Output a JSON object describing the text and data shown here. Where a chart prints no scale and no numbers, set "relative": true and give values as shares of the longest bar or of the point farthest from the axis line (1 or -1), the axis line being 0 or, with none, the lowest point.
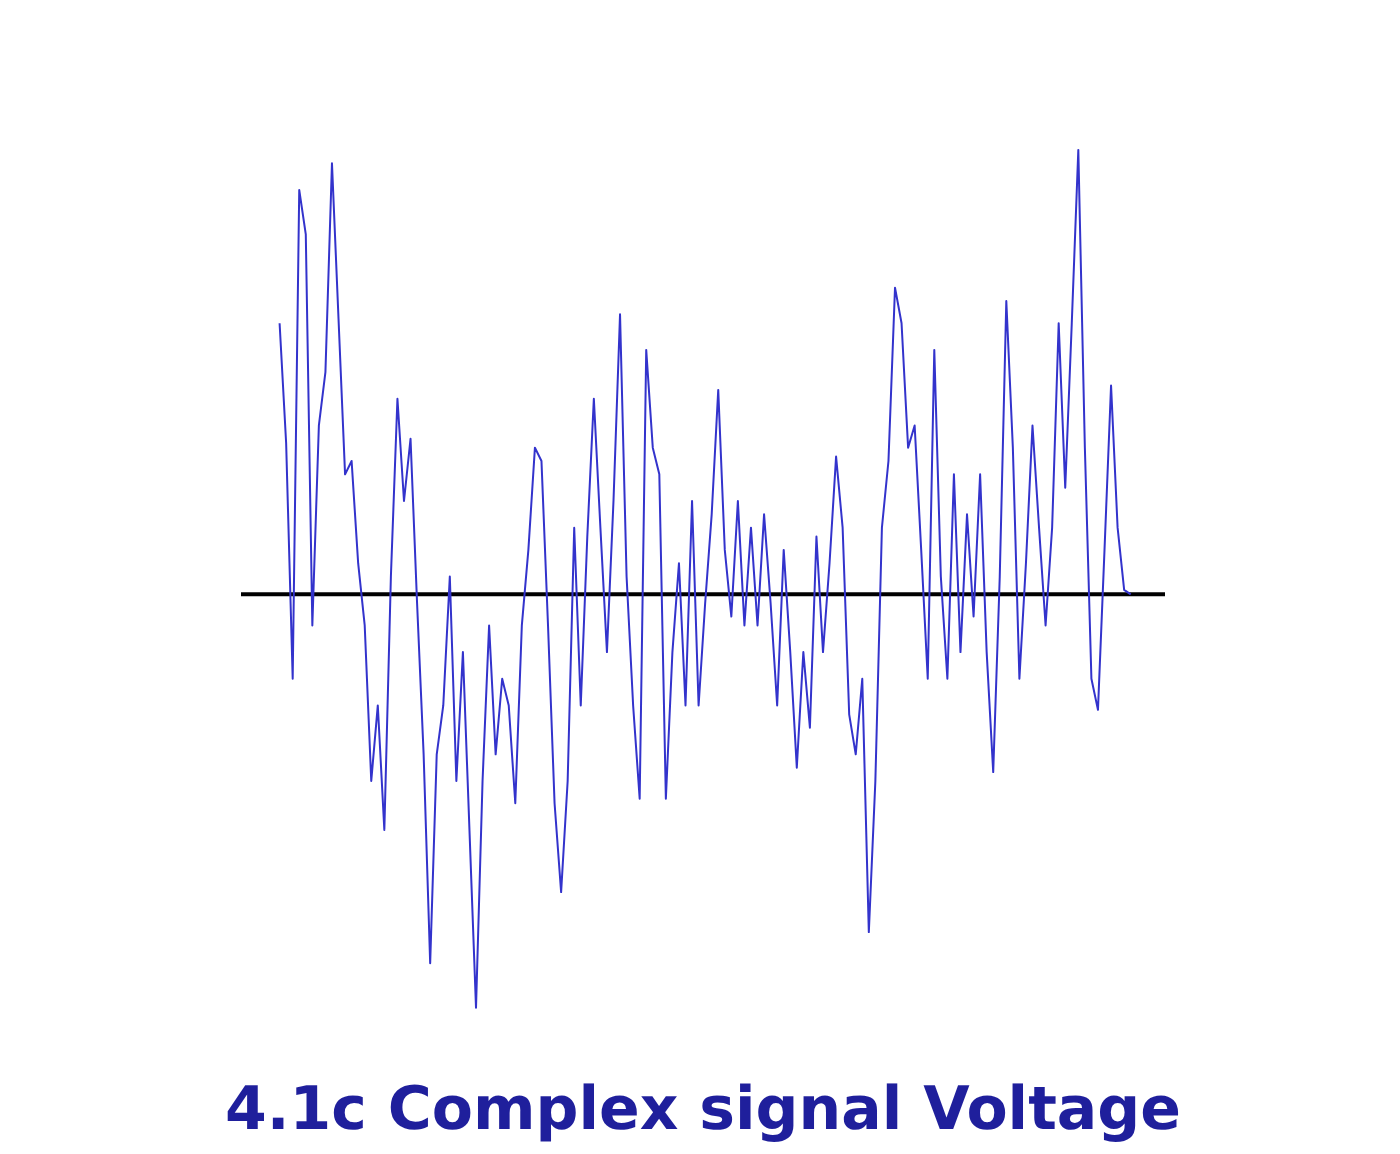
{
  "chart_data": {
    "type": "line",
    "title": "4.1c Complex signal Voltage",
    "relative": true,
    "categories": [
      null,
      null,
      null,
      null,
      null,
      null,
      null,
      null,
      null,
      null,
      null,
      null,
      null,
      null,
      null,
      null,
      null,
      null,
      null,
      null,
      null,
      null,
      null,
      null,
      null,
      null,
      null,
      null,
      null,
      null,
      null,
      null,
      null,
      null,
      null,
      null,
      null,
      null,
      null,
      null,
      null,
      null,
      null,
      null,
      null,
      null,
      null,
      null,
      null,
      null,
      null,
      null,
      null,
      null,
      null,
      null,
      null,
      null,
      null,
      null,
      null,
      null,
      null,
      null,
      null,
      null,
      null,
      null,
      null,
      null,
      null,
      null,
      null,
      null,
      null,
      null,
      null,
      null,
      null,
      null,
      null,
      null,
      null,
      null,
      null,
      null,
      null,
      null,
      null,
      null,
      null,
      null,
      null,
      null,
      null,
      null,
      null,
      null,
      null,
      null,
      null,
      null,
      null,
      null,
      null,
      null,
      null,
      null,
      null,
      null,
      null,
      null,
      null,
      null,
      null,
      null,
      null,
      null,
      null,
      null,
      null,
      null,
      null,
      null,
      null,
      null,
      null,
      null,
      null,
      null,
      null
    ],
    "series": [
      {
        "color": "#3333cc",
        "values": [
          0.61,
          0.34,
          -0.19,
          0.91,
          0.81,
          -0.07,
          0.38,
          0.5,
          0.97,
          0.62,
          0.27,
          0.3,
          0.07,
          -0.07,
          -0.42,
          -0.25,
          -0.53,
          0.04,
          0.44,
          0.21,
          0.35,
          -0.02,
          -0.36,
          -0.83,
          -0.36,
          -0.25,
          0.04,
          -0.42,
          -0.13,
          -0.53,
          -0.93,
          -0.42,
          -0.07,
          -0.36,
          -0.19,
          -0.25,
          -0.47,
          -0.07,
          0.1,
          0.33,
          0.3,
          -0.07,
          -0.47,
          -0.67,
          -0.42,
          0.15,
          -0.25,
          0.13,
          0.44,
          0.15,
          -0.13,
          0.21,
          0.63,
          0.04,
          -0.25,
          -0.46,
          0.55,
          0.33,
          0.27,
          -0.46,
          -0.13,
          0.07,
          -0.25,
          0.21,
          -0.25,
          -0.02,
          0.18,
          0.46,
          0.1,
          -0.05,
          0.21,
          -0.07,
          0.15,
          -0.07,
          0.18,
          -0.02,
          -0.25,
          0.1,
          -0.13,
          -0.39,
          -0.13,
          -0.3,
          0.13,
          -0.13,
          0.07,
          0.31,
          0.15,
          -0.27,
          -0.36,
          -0.19,
          -0.76,
          -0.42,
          0.15,
          0.3,
          0.69,
          0.61,
          0.33,
          0.38,
          0.1,
          -0.19,
          0.55,
          0.04,
          -0.19,
          0.27,
          -0.13,
          0.18,
          -0.05,
          0.27,
          -0.13,
          -0.4,
          0.04,
          0.66,
          0.33,
          -0.19,
          0.07,
          0.38,
          0.15,
          -0.07,
          0.15,
          0.61,
          0.24,
          0.61,
          1.0,
          0.33,
          -0.19,
          -0.26,
          0.1,
          0.47,
          0.15,
          0.01,
          0
        ]
      }
    ]
  }
}
